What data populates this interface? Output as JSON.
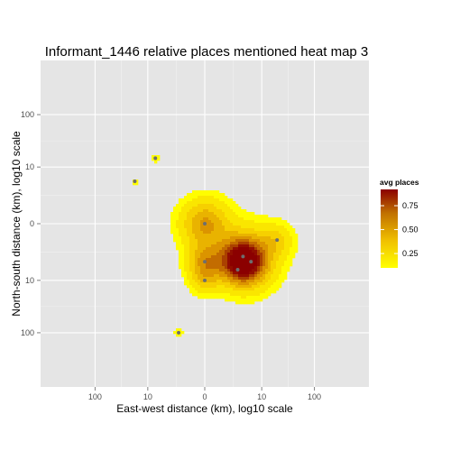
{
  "chart_data": {
    "type": "heatmap",
    "title": "Informant_1446 relative places mentioned heat map 3",
    "xlabel": "East-west distance (km), log10 scale",
    "ylabel": "North-south distance (km), log10 scale",
    "x_tick_labels": [
      "100",
      "10",
      "0",
      "10",
      "100"
    ],
    "y_tick_labels": [
      "100",
      "10",
      "0",
      "10",
      "100"
    ],
    "tick_positions": [
      -100,
      -10,
      0,
      10,
      100
    ],
    "xlim": [
      -1000,
      1000
    ],
    "ylim": [
      -1000,
      1000
    ],
    "scale": "signed log10",
    "grid": true,
    "legend": {
      "title": "avg places",
      "position": "right",
      "ticks": [
        0.25,
        0.5,
        0.75
      ],
      "tick_labels": [
        "0.25",
        "0.50",
        "0.75"
      ],
      "range": [
        0.1,
        0.92
      ],
      "colors": [
        "#ffff00",
        "#8b0000"
      ]
    },
    "density_peaks": [
      {
        "x": 4,
        "y": -4,
        "value": 0.92,
        "spread": 0.28
      },
      {
        "x": 0,
        "y": 0,
        "value": 0.46,
        "spread": 0.3
      },
      {
        "x": 0,
        "y": -4,
        "value": 0.4,
        "spread": 0.22
      },
      {
        "x": 20,
        "y": -1,
        "value": 0.2,
        "spread": 0.2
      },
      {
        "x": 0,
        "y": -10,
        "value": 0.22,
        "spread": 0.18
      },
      {
        "x": 5,
        "y": -3,
        "value": 0.3,
        "spread": 0.4
      },
      {
        "x": -7,
        "y": 15,
        "value": 0.12,
        "spread": 0.06
      },
      {
        "x": -18,
        "y": 5,
        "value": 0.1,
        "spread": 0.05
      },
      {
        "x": -2,
        "y": -100,
        "value": 0.12,
        "spread": 0.06
      }
    ],
    "points": [
      {
        "x": 0,
        "y": 0
      },
      {
        "x": 0,
        "y": -4
      },
      {
        "x": 4,
        "y": -3
      },
      {
        "x": 6,
        "y": -4
      },
      {
        "x": 3,
        "y": -6
      },
      {
        "x": 20,
        "y": -1
      },
      {
        "x": 0,
        "y": -10
      },
      {
        "x": -7,
        "y": 15
      },
      {
        "x": -18,
        "y": 5
      },
      {
        "x": -2,
        "y": -100
      }
    ],
    "colors": {
      "panel": "#e5e5e5",
      "grid": "#ffffff",
      "point": "#6e6e6e"
    }
  }
}
